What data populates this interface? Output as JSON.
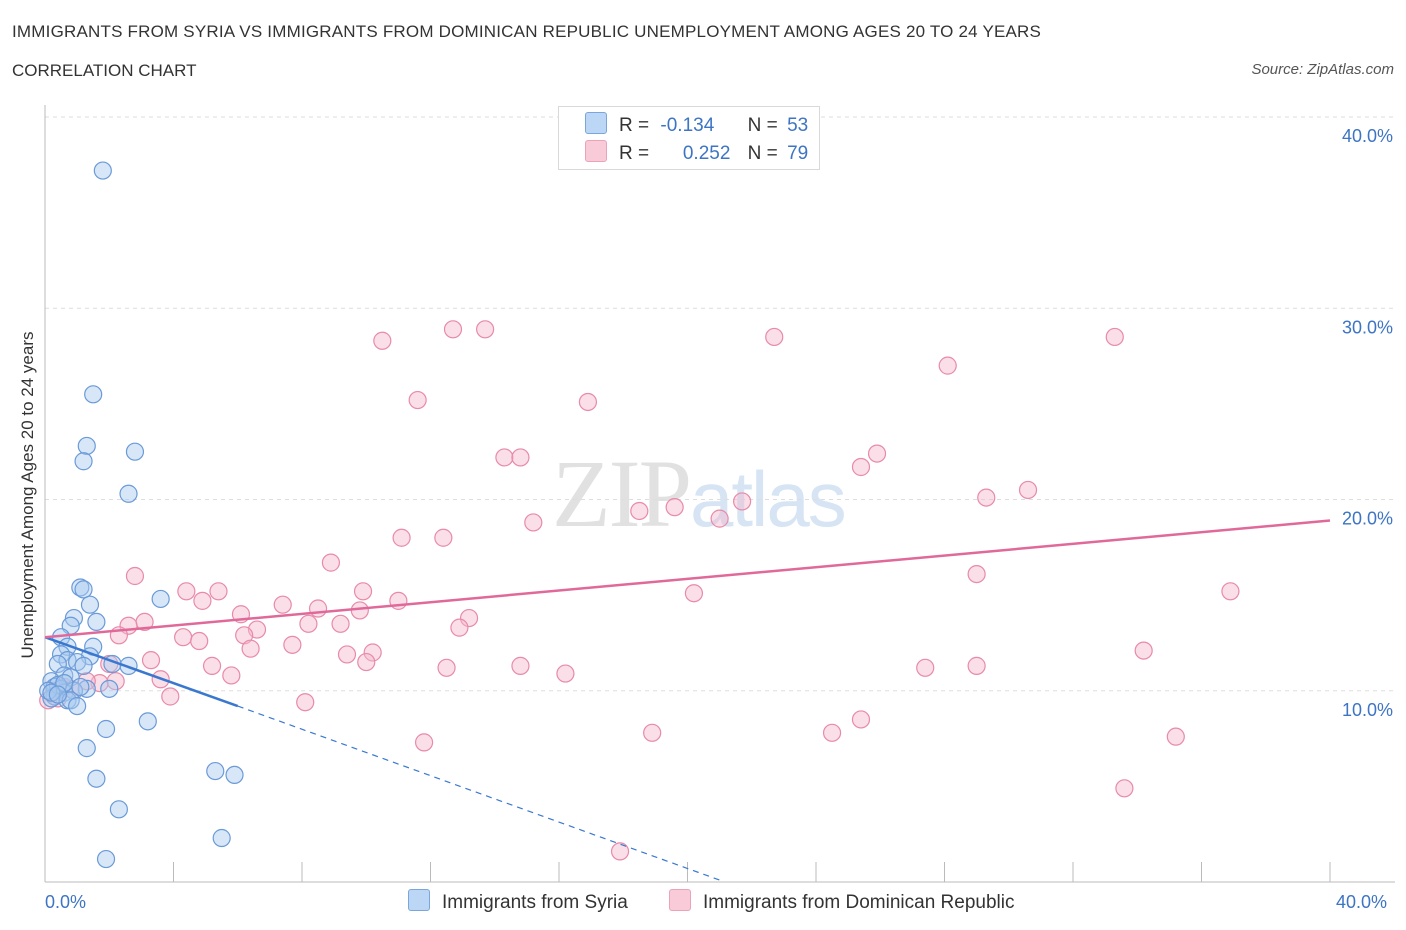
{
  "header": {
    "title": "IMMIGRANTS FROM SYRIA VS IMMIGRANTS FROM DOMINICAN REPUBLIC UNEMPLOYMENT AMONG AGES 20 TO 24 YEARS",
    "subtitle": "CORRELATION CHART",
    "source": "Source: ZipAtlas.com"
  },
  "watermark": {
    "zip": "ZIP",
    "atlas": "atlas"
  },
  "legend": {
    "rows": [
      {
        "r_label": "R =",
        "r_value": "-0.134",
        "n_label": "N =",
        "n_value": "53"
      },
      {
        "r_label": "R =",
        "r_value": "0.252",
        "n_label": "N =",
        "n_value": "79"
      }
    ]
  },
  "colors": {
    "syria_fill": "#a9c9f0",
    "syria_stroke": "#6a9ad8",
    "syria_line": "#3a78d0",
    "dr_fill": "#f5b8cb",
    "dr_stroke": "#e88aa8",
    "dr_line": "#e0699a",
    "tick_text": "#3d74c4",
    "grid": "#dddddd"
  },
  "chart_data": {
    "type": "scatter",
    "title": "IMMIGRANTS FROM SYRIA VS IMMIGRANTS FROM DOMINICAN REPUBLIC UNEMPLOYMENT AMONG AGES 20 TO 24 YEARS",
    "xlabel": "",
    "ylabel": "Unemployment Among Ages 20 to 24 years",
    "xlim": [
      0,
      40
    ],
    "ylim": [
      0,
      40
    ],
    "x_tick_labels": [
      "0.0%",
      "40.0%"
    ],
    "y_ticks": [
      10,
      20,
      30,
      40
    ],
    "y_tick_labels": [
      "10.0%",
      "20.0%",
      "30.0%",
      "40.0%"
    ],
    "legend_position": "top-center",
    "series": [
      {
        "name": "Immigrants from Syria",
        "r": -0.134,
        "n": 53,
        "trend": {
          "x": [
            0,
            6
          ],
          "y": [
            12.8,
            9.2
          ],
          "dashed_to": {
            "x": 21,
            "y": 0.1
          }
        },
        "points": [
          [
            1.8,
            37.2
          ],
          [
            1.5,
            25.5
          ],
          [
            1.3,
            22.8
          ],
          [
            1.2,
            22.0
          ],
          [
            2.8,
            22.5
          ],
          [
            2.6,
            20.3
          ],
          [
            1.1,
            15.4
          ],
          [
            1.2,
            15.3
          ],
          [
            3.6,
            14.8
          ],
          [
            1.4,
            14.5
          ],
          [
            0.9,
            13.8
          ],
          [
            1.6,
            13.6
          ],
          [
            0.8,
            13.4
          ],
          [
            0.5,
            12.8
          ],
          [
            0.7,
            12.3
          ],
          [
            1.5,
            12.3
          ],
          [
            0.5,
            11.9
          ],
          [
            1.4,
            11.8
          ],
          [
            0.7,
            11.6
          ],
          [
            1.0,
            11.5
          ],
          [
            2.6,
            11.3
          ],
          [
            0.4,
            11.4
          ],
          [
            2.1,
            11.4
          ],
          [
            1.2,
            11.3
          ],
          [
            0.6,
            10.8
          ],
          [
            0.8,
            10.7
          ],
          [
            0.2,
            10.5
          ],
          [
            0.3,
            10.2
          ],
          [
            0.5,
            10.1
          ],
          [
            1.3,
            10.1
          ],
          [
            2.0,
            10.1
          ],
          [
            0.6,
            9.9
          ],
          [
            0.9,
            10.0
          ],
          [
            0.3,
            9.7
          ],
          [
            0.2,
            9.6
          ],
          [
            0.7,
            9.5
          ],
          [
            0.8,
            9.5
          ],
          [
            1.0,
            9.2
          ],
          [
            3.2,
            8.4
          ],
          [
            1.9,
            8.0
          ],
          [
            1.3,
            7.0
          ],
          [
            5.3,
            5.8
          ],
          [
            5.9,
            5.6
          ],
          [
            1.6,
            5.4
          ],
          [
            2.3,
            3.8
          ],
          [
            5.5,
            2.3
          ],
          [
            1.9,
            1.2
          ],
          [
            0.4,
            10.3
          ],
          [
            0.1,
            10.0
          ],
          [
            0.6,
            10.4
          ],
          [
            0.2,
            9.9
          ],
          [
            1.1,
            10.2
          ],
          [
            0.4,
            9.8
          ]
        ]
      },
      {
        "name": "Immigrants from Dominican Republic",
        "r": 0.252,
        "n": 79,
        "trend": {
          "x": [
            0,
            40
          ],
          "y": [
            12.8,
            18.9
          ]
        },
        "points": [
          [
            12.7,
            28.9
          ],
          [
            13.7,
            28.9
          ],
          [
            10.5,
            28.3
          ],
          [
            22.7,
            28.5
          ],
          [
            33.3,
            28.5
          ],
          [
            28.1,
            27.0
          ],
          [
            11.6,
            25.2
          ],
          [
            16.9,
            25.1
          ],
          [
            14.3,
            22.2
          ],
          [
            14.8,
            22.2
          ],
          [
            25.9,
            22.4
          ],
          [
            25.4,
            21.7
          ],
          [
            29.3,
            20.1
          ],
          [
            30.6,
            20.5
          ],
          [
            21.7,
            19.9
          ],
          [
            19.6,
            19.6
          ],
          [
            18.5,
            19.4
          ],
          [
            21.0,
            19.0
          ],
          [
            15.2,
            18.8
          ],
          [
            11.1,
            18.0
          ],
          [
            12.4,
            18.0
          ],
          [
            8.9,
            16.7
          ],
          [
            2.8,
            16.0
          ],
          [
            29.0,
            16.1
          ],
          [
            36.9,
            15.2
          ],
          [
            4.4,
            15.2
          ],
          [
            5.4,
            15.2
          ],
          [
            9.9,
            15.2
          ],
          [
            20.2,
            15.1
          ],
          [
            4.9,
            14.7
          ],
          [
            11.0,
            14.7
          ],
          [
            7.4,
            14.5
          ],
          [
            8.5,
            14.3
          ],
          [
            9.8,
            14.2
          ],
          [
            6.1,
            14.0
          ],
          [
            13.2,
            13.8
          ],
          [
            3.1,
            13.6
          ],
          [
            2.6,
            13.4
          ],
          [
            6.6,
            13.2
          ],
          [
            8.2,
            13.5
          ],
          [
            9.2,
            13.5
          ],
          [
            12.9,
            13.3
          ],
          [
            6.2,
            12.9
          ],
          [
            2.3,
            12.9
          ],
          [
            4.3,
            12.8
          ],
          [
            4.8,
            12.6
          ],
          [
            7.7,
            12.4
          ],
          [
            6.4,
            12.2
          ],
          [
            10.2,
            12.0
          ],
          [
            9.4,
            11.9
          ],
          [
            34.2,
            12.1
          ],
          [
            3.3,
            11.6
          ],
          [
            10.0,
            11.5
          ],
          [
            2.0,
            11.4
          ],
          [
            5.2,
            11.3
          ],
          [
            12.5,
            11.2
          ],
          [
            14.8,
            11.3
          ],
          [
            27.4,
            11.2
          ],
          [
            29.0,
            11.3
          ],
          [
            16.2,
            10.9
          ],
          [
            5.8,
            10.8
          ],
          [
            3.6,
            10.6
          ],
          [
            1.7,
            10.4
          ],
          [
            2.2,
            10.5
          ],
          [
            0.8,
            10.1
          ],
          [
            1.3,
            10.5
          ],
          [
            0.3,
            10.0
          ],
          [
            0.6,
            10.2
          ],
          [
            3.9,
            9.7
          ],
          [
            8.1,
            9.4
          ],
          [
            25.4,
            8.5
          ],
          [
            24.5,
            7.8
          ],
          [
            18.9,
            7.8
          ],
          [
            35.2,
            7.6
          ],
          [
            11.8,
            7.3
          ],
          [
            33.6,
            4.9
          ],
          [
            17.9,
            1.6
          ],
          [
            0.4,
            9.6
          ],
          [
            0.1,
            9.5
          ]
        ]
      }
    ]
  }
}
